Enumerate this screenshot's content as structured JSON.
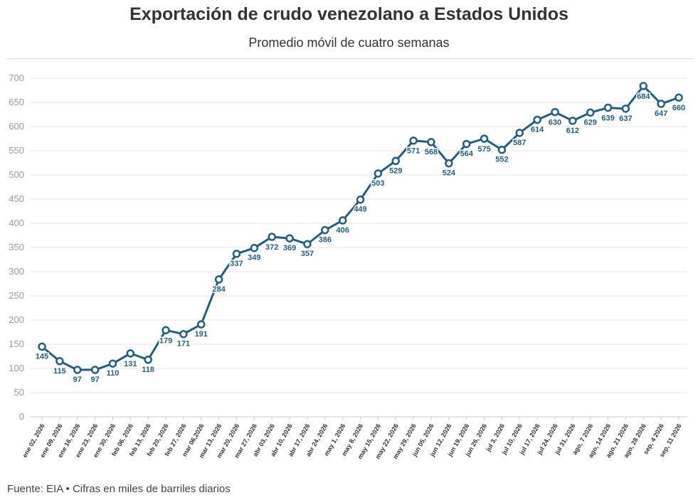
{
  "header": {
    "title": "Exportación de crudo venezolano a Estados Unidos",
    "subtitle": "Promedio móvil de cuatro semanas"
  },
  "footer": {
    "source": "Fuente: EIA • Cifras en miles de barriles diarios"
  },
  "colors": {
    "line": "#1f5f86",
    "grid": "#e6e6e6",
    "axis_text": "#999999"
  },
  "chart_data": {
    "type": "line",
    "title": "Exportación de crudo venezolano a Estados Unidos",
    "subtitle": "Promedio móvil de cuatro semanas",
    "categories": [
      "ene 02, 2026",
      "ene 09, 2026",
      "ene 16, 2026",
      "ene 23, 2026",
      "ene 30, 2026",
      "feb 06, 2026",
      "feb 13, 2026",
      "feb 20, 2026",
      "feb 27, 2026",
      "mar 06,2026",
      "mar 13, 2026",
      "mar 20, 2026",
      "mar 27, 2026",
      "abr 03, 2026",
      "abr 10, 2026",
      "abr 17, 2026",
      "abr 24, 2026",
      "may 1, 2026",
      "may 8, 2026",
      "may 15, 2026",
      "may 22, 2026",
      "may 29, 2026",
      "jun 05, 2026",
      "jun 12, 2026",
      "jun 19, 2026",
      "jun 26, 2026",
      "jul 3, 2026",
      "jul 10, 2026",
      "jul 17, 2026",
      "jul 24, 2026",
      "jul 31, 2026",
      "ago, 7 2026",
      "ago, 14 2026",
      "ago, 21 2026",
      "ago, 28 2026",
      "sep, 4 2026",
      "sep, 11 2026"
    ],
    "values": [
      145,
      115,
      97,
      97,
      110,
      131,
      118,
      179,
      171,
      191,
      284,
      337,
      349,
      372,
      369,
      357,
      386,
      406,
      449,
      503,
      529,
      571,
      568,
      524,
      564,
      575,
      552,
      587,
      614,
      630,
      612,
      629,
      639,
      637,
      684,
      647,
      660
    ],
    "ylim": [
      0,
      700
    ],
    "yticks": [
      0,
      50,
      100,
      150,
      200,
      250,
      300,
      350,
      400,
      450,
      500,
      550,
      600,
      650,
      700
    ],
    "grid": true,
    "legend": "none"
  }
}
